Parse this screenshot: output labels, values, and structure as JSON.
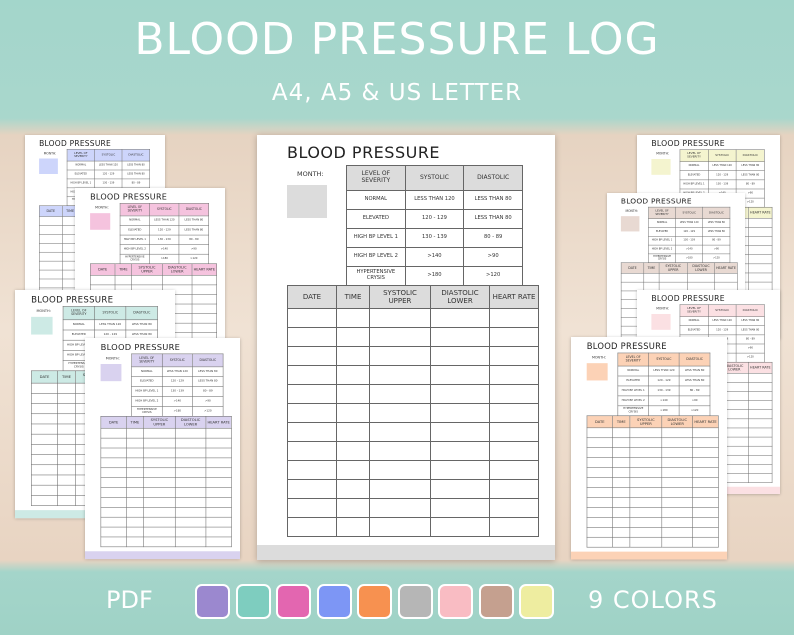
{
  "header": {
    "title": "BLOOD PRESSURE LOG",
    "subtitle": "A4, A5 & US LETTER"
  },
  "sheet": {
    "title": "BLOOD PRESSURE",
    "month_label": "MONTH:",
    "severity_table": {
      "columns": [
        "LEVEL OF SEVERITY",
        "SYSTOLIC",
        "DIASTOLIC"
      ],
      "rows": [
        [
          "NORMAL",
          "LESS THAN 120",
          "LESS THAN 80"
        ],
        [
          "ELEVATED",
          "120 - 129",
          "LESS THAN 80"
        ],
        [
          "HIGH BP LEVEL 1",
          "130 - 139",
          "80 - 89"
        ],
        [
          "HIGH BP LEVEL 2",
          ">140",
          ">90"
        ],
        [
          "HYPERTENSIVE CRYSIS",
          ">180",
          ">120"
        ]
      ]
    },
    "log_table": {
      "columns": [
        "DATE",
        "TIME",
        "SYSTOLIC UPPER",
        "DIASTOLIC LOWER",
        "HEART RATE"
      ]
    }
  },
  "main_sheet": {
    "color": "#dcdcdc"
  },
  "mockups": [
    {
      "color": "#cdd5fb"
    },
    {
      "color": "#f5c3de"
    },
    {
      "color": "#cdeae5"
    },
    {
      "color": "#d9d2ef"
    },
    {
      "color": "#f4f4cf"
    },
    {
      "color": "#e8d9d2"
    },
    {
      "color": "#fbe0e3"
    },
    {
      "color": "#fcd2b6"
    }
  ],
  "footer": {
    "format": "PDF",
    "colors_label": "9 COLORS",
    "swatches": [
      "#9b88cf",
      "#7ecdbf",
      "#e366b0",
      "#7d96f5",
      "#f79150",
      "#b6b6b6",
      "#f9bcc3",
      "#c5a08f",
      "#eeeda0"
    ]
  }
}
